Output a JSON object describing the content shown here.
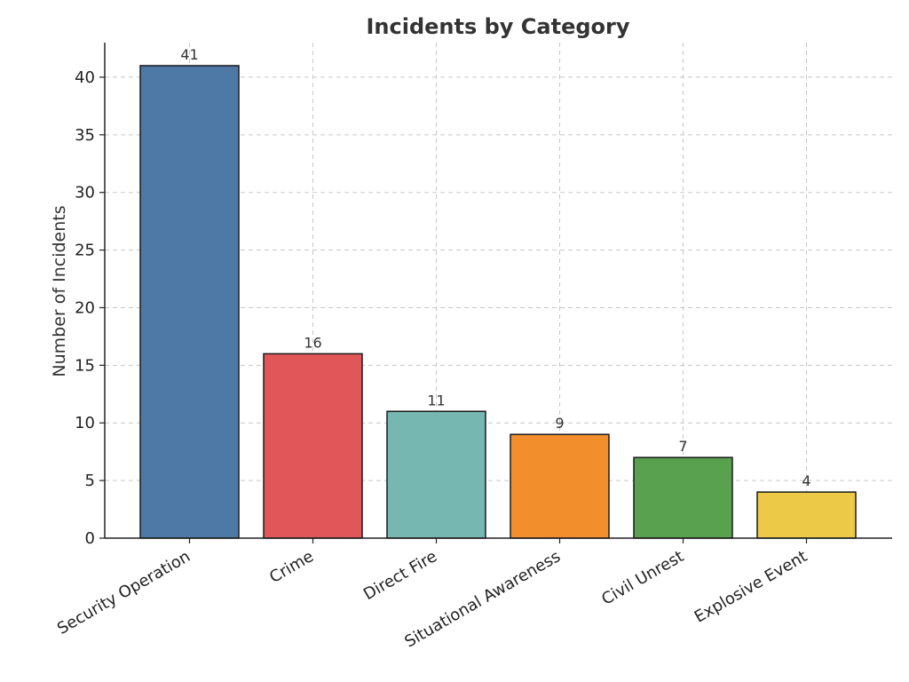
{
  "chart_data": {
    "type": "bar",
    "title": "Incidents by Category",
    "xlabel": "",
    "ylabel": "Number of Incidents",
    "categories": [
      "Security Operation",
      "Crime",
      "Direct Fire",
      "Situational Awareness",
      "Civil Unrest",
      "Explosive Event"
    ],
    "values": [
      41,
      16,
      11,
      9,
      7,
      4
    ],
    "colors": [
      "#4e79a7",
      "#e15759",
      "#76b7b2",
      "#f28e2b",
      "#59a14f",
      "#edc948"
    ],
    "ylim": [
      0,
      43
    ],
    "yticks": [
      0,
      5,
      10,
      15,
      20,
      25,
      30,
      35,
      40
    ],
    "grid": true,
    "data_labels": true
  }
}
